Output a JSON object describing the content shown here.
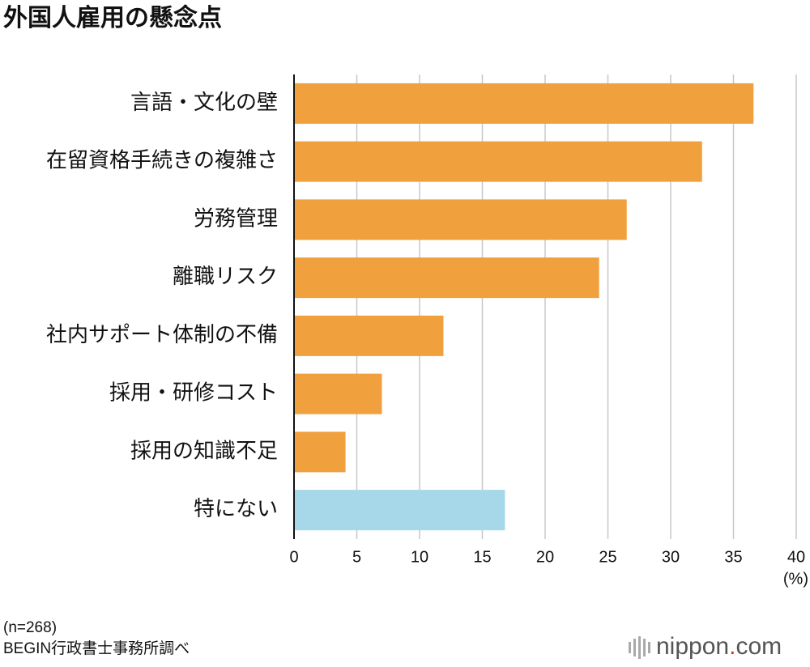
{
  "chart_data": {
    "type": "bar",
    "orientation": "horizontal",
    "title": "外国人雇用の懸念点",
    "categories": [
      "言語・文化の壁",
      "在留資格手続きの複雑さ",
      "労務管理",
      "離職リスク",
      "社内サポート体制の不備",
      "採用・研修コスト",
      "採用の知識不足",
      "特にない"
    ],
    "values": [
      36.6,
      32.5,
      26.5,
      24.3,
      11.9,
      7.0,
      4.1,
      16.8
    ],
    "colors": [
      "#f0a03c",
      "#f0a03c",
      "#f0a03c",
      "#f0a03c",
      "#f0a03c",
      "#f0a03c",
      "#f0a03c",
      "#a6d8ea"
    ],
    "xlim": [
      0,
      40
    ],
    "xticks": [
      0,
      5,
      10,
      15,
      20,
      25,
      30,
      35,
      40
    ],
    "x_unit": "(%)",
    "grid": true,
    "note": "(n=268)",
    "source": "BEGIN行政書士事務所調べ",
    "logo": {
      "name": "nippon",
      "dot": ".",
      "domain": "com"
    }
  }
}
